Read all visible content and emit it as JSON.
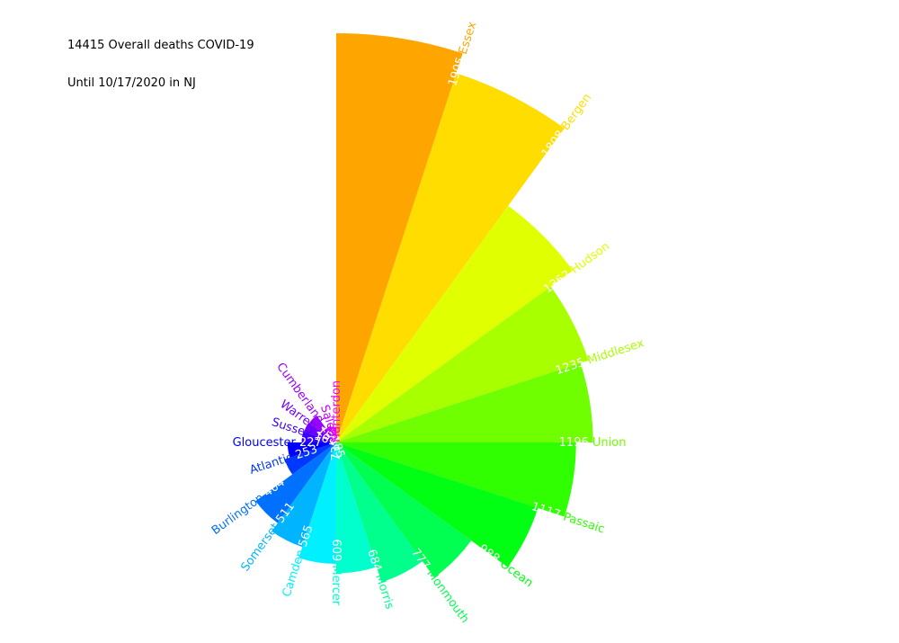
{
  "annotations": {
    "line1": "14415 Overall deaths COVID-19",
    "line2": "Until 10/17/2020 in NJ"
  },
  "chart_data": {
    "type": "bar",
    "polar": true,
    "title": "",
    "categories": [
      "Essex",
      "Bergen",
      "Hudson",
      "Middlesex",
      "Union",
      "Passaic",
      "Ocean",
      "Monmouth",
      "Morris",
      "Mercer",
      "Camden",
      "Somerset",
      "Burlington",
      "Atlantic",
      "Gloucester",
      "Sussex",
      "Warren",
      "Cumberland",
      "Salem",
      "Hunterdon"
    ],
    "values": [
      1905,
      1808,
      1362,
      1235,
      1196,
      1117,
      988,
      777,
      684,
      609,
      565,
      511,
      464,
      253,
      227,
      161,
      158,
      155,
      85,
      73
    ],
    "colors": [
      "#ffa500",
      "#ffdd00",
      "#e0ff00",
      "#a8ff00",
      "#6fff00",
      "#2fff00",
      "#00ff12",
      "#00ff50",
      "#00ff8c",
      "#00ffcc",
      "#00f0ff",
      "#00b4ff",
      "#0070ff",
      "#0038ff",
      "#0000ff",
      "#3a00ff",
      "#6e00ff",
      "#9a00ff",
      "#c800ff",
      "#f000ff"
    ],
    "legend": "none",
    "grid": false
  }
}
